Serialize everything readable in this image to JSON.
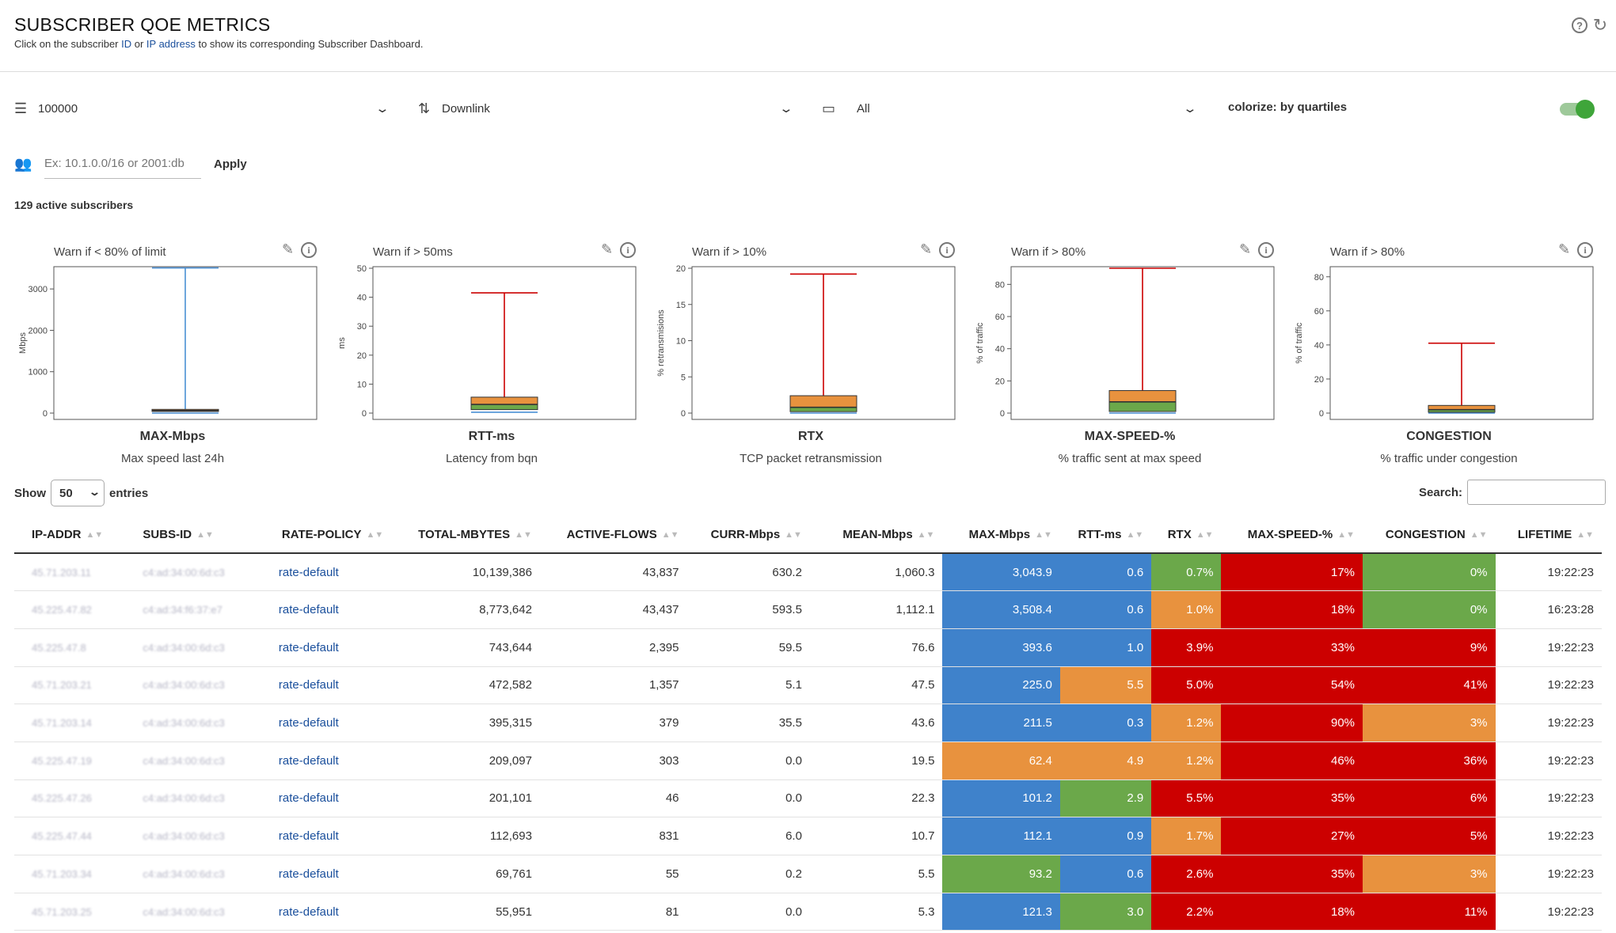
{
  "header": {
    "title": "SUBSCRIBER QOE METRICS",
    "subtitle_pre": "Click on the subscriber ",
    "subtitle_id": "ID",
    "subtitle_or": " or ",
    "subtitle_ip": "IP address",
    "subtitle_post": " to show its corresponding Subscriber Dashboard.",
    "help_glyph": "?",
    "refresh_glyph": "↻"
  },
  "filters": {
    "limit": "100000",
    "direction": "Downlink",
    "folder": "All",
    "colorize_label": "colorize: by quartiles",
    "colorize_on": true,
    "ip_placeholder": "Ex: 10.1.0.0/16 or 2001:db",
    "apply_label": "Apply"
  },
  "active_subscribers": "129 active subscribers",
  "panels": [
    {
      "warn": "Warn if < 80% of limit",
      "name": "MAX-Mbps",
      "desc": "Max speed last 24h",
      "ylabel": "Mbps"
    },
    {
      "warn": "Warn if > 50ms",
      "name": "RTT-ms",
      "desc": "Latency from bqn",
      "ylabel": "ms"
    },
    {
      "warn": "Warn if > 10%",
      "name": "RTX",
      "desc": "TCP packet retransmission",
      "ylabel": "% retransmisions"
    },
    {
      "warn": "Warn if > 80%",
      "name": "MAX-SPEED-%",
      "desc": "% traffic sent at max speed",
      "ylabel": "% of traffic"
    },
    {
      "warn": "Warn if > 80%",
      "name": "CONGESTION",
      "desc": "% traffic under congestion",
      "ylabel": "% of traffic"
    }
  ],
  "chart_data": [
    {
      "type": "box",
      "title": "MAX-Mbps",
      "ylabel": "Mbps",
      "ylim": [
        0,
        3500
      ],
      "yticks": [
        0,
        1000,
        2000,
        3000
      ],
      "min": 0,
      "q1": 40,
      "median": 60,
      "q3": 90,
      "max": 3508.4,
      "whisker_color": "#4a8fd4"
    },
    {
      "type": "box",
      "title": "RTT-ms",
      "ylabel": "ms",
      "ylim": [
        0,
        50
      ],
      "yticks": [
        0,
        10,
        20,
        30,
        40,
        50
      ],
      "min": 0.3,
      "q1": 1.2,
      "median": 3.0,
      "q3": 5.5,
      "max": 41.5,
      "whisker_color": "#cc0000"
    },
    {
      "type": "box",
      "title": "RTX",
      "ylabel": "% retransmisions",
      "ylim": [
        0,
        20
      ],
      "yticks": [
        0,
        5,
        10,
        15,
        20
      ],
      "min": 0,
      "q1": 0.2,
      "median": 0.8,
      "q3": 2.4,
      "max": 19.2,
      "whisker_color": "#cc0000"
    },
    {
      "type": "box",
      "title": "MAX-SPEED-%",
      "ylabel": "% of traffic",
      "ylim": [
        0,
        90
      ],
      "yticks": [
        0,
        20,
        40,
        60,
        80
      ],
      "min": 0,
      "q1": 1,
      "median": 7,
      "q3": 14,
      "max": 90,
      "whisker_color": "#cc0000"
    },
    {
      "type": "box",
      "title": "CONGESTION",
      "ylabel": "% of traffic",
      "ylim": [
        0,
        85
      ],
      "yticks": [
        0,
        20,
        40,
        60,
        80
      ],
      "min": 0,
      "q1": 0.5,
      "median": 2,
      "q3": 4.5,
      "max": 41,
      "whisker_color": "#cc0000"
    }
  ],
  "table_controls": {
    "show_label": "Show",
    "entries_value": "50",
    "entries_label": "entries",
    "search_label": "Search:"
  },
  "table": {
    "columns": [
      "IP-ADDR",
      "SUBS-ID",
      "RATE-POLICY",
      "TOTAL-MBYTES",
      "ACTIVE-FLOWS",
      "CURR-Mbps",
      "MEAN-Mbps",
      "MAX-Mbps",
      "RTT-ms",
      "RTX",
      "MAX-SPEED-%",
      "CONGESTION",
      "LIFETIME"
    ],
    "sort_glyph": "▲▼",
    "colors": {
      "blue": "#3f82cb",
      "green": "#6ba84a",
      "orange": "#e8923e",
      "red": "#cc0000"
    },
    "rows": [
      {
        "ip": "45.71.203.11",
        "subs": "c4:ad:34:00:6d:c3",
        "policy": "rate-default",
        "total": "10,139,386",
        "flows": "43,837",
        "curr": "630.2",
        "mean": "1,060.3",
        "max": "3,043.9",
        "max_c": "blue",
        "rtt": "0.6",
        "rtt_c": "blue",
        "rtx": "0.7%",
        "rtx_c": "green",
        "speed": "17%",
        "speed_c": "red",
        "cong": "0%",
        "cong_c": "green",
        "life": "19:22:23"
      },
      {
        "ip": "45.225.47.82",
        "subs": "c4:ad:34:f6:37:e7",
        "policy": "rate-default",
        "total": "8,773,642",
        "flows": "43,437",
        "curr": "593.5",
        "mean": "1,112.1",
        "max": "3,508.4",
        "max_c": "blue",
        "rtt": "0.6",
        "rtt_c": "blue",
        "rtx": "1.0%",
        "rtx_c": "orange",
        "speed": "18%",
        "speed_c": "red",
        "cong": "0%",
        "cong_c": "green",
        "life": "16:23:28"
      },
      {
        "ip": "45.225.47.8",
        "subs": "c4:ad:34:00:6d:c3",
        "policy": "rate-default",
        "total": "743,644",
        "flows": "2,395",
        "curr": "59.5",
        "mean": "76.6",
        "max": "393.6",
        "max_c": "blue",
        "rtt": "1.0",
        "rtt_c": "blue",
        "rtx": "3.9%",
        "rtx_c": "red",
        "speed": "33%",
        "speed_c": "red",
        "cong": "9%",
        "cong_c": "red",
        "life": "19:22:23"
      },
      {
        "ip": "45.71.203.21",
        "subs": "c4:ad:34:00:6d:c3",
        "policy": "rate-default",
        "total": "472,582",
        "flows": "1,357",
        "curr": "5.1",
        "mean": "47.5",
        "max": "225.0",
        "max_c": "blue",
        "rtt": "5.5",
        "rtt_c": "orange",
        "rtx": "5.0%",
        "rtx_c": "red",
        "speed": "54%",
        "speed_c": "red",
        "cong": "41%",
        "cong_c": "red",
        "life": "19:22:23"
      },
      {
        "ip": "45.71.203.14",
        "subs": "c4:ad:34:00:6d:c3",
        "policy": "rate-default",
        "total": "395,315",
        "flows": "379",
        "curr": "35.5",
        "mean": "43.6",
        "max": "211.5",
        "max_c": "blue",
        "rtt": "0.3",
        "rtt_c": "blue",
        "rtx": "1.2%",
        "rtx_c": "orange",
        "speed": "90%",
        "speed_c": "red",
        "cong": "3%",
        "cong_c": "orange",
        "life": "19:22:23"
      },
      {
        "ip": "45.225.47.19",
        "subs": "c4:ad:34:00:6d:c3",
        "policy": "rate-default",
        "total": "209,097",
        "flows": "303",
        "curr": "0.0",
        "mean": "19.5",
        "max": "62.4",
        "max_c": "orange",
        "rtt": "4.9",
        "rtt_c": "orange",
        "rtx": "1.2%",
        "rtx_c": "orange",
        "speed": "46%",
        "speed_c": "red",
        "cong": "36%",
        "cong_c": "red",
        "life": "19:22:23"
      },
      {
        "ip": "45.225.47.26",
        "subs": "c4:ad:34:00:6d:c3",
        "policy": "rate-default",
        "total": "201,101",
        "flows": "46",
        "curr": "0.0",
        "mean": "22.3",
        "max": "101.2",
        "max_c": "blue",
        "rtt": "2.9",
        "rtt_c": "green",
        "rtx": "5.5%",
        "rtx_c": "red",
        "speed": "35%",
        "speed_c": "red",
        "cong": "6%",
        "cong_c": "red",
        "life": "19:22:23"
      },
      {
        "ip": "45.225.47.44",
        "subs": "c4:ad:34:00:6d:c3",
        "policy": "rate-default",
        "total": "112,693",
        "flows": "831",
        "curr": "6.0",
        "mean": "10.7",
        "max": "112.1",
        "max_c": "blue",
        "rtt": "0.9",
        "rtt_c": "blue",
        "rtx": "1.7%",
        "rtx_c": "orange",
        "speed": "27%",
        "speed_c": "red",
        "cong": "5%",
        "cong_c": "red",
        "life": "19:22:23"
      },
      {
        "ip": "45.71.203.34",
        "subs": "c4:ad:34:00:6d:c3",
        "policy": "rate-default",
        "total": "69,761",
        "flows": "55",
        "curr": "0.2",
        "mean": "5.5",
        "max": "93.2",
        "max_c": "green",
        "rtt": "0.6",
        "rtt_c": "blue",
        "rtx": "2.6%",
        "rtx_c": "red",
        "speed": "35%",
        "speed_c": "red",
        "cong": "3%",
        "cong_c": "orange",
        "life": "19:22:23"
      },
      {
        "ip": "45.71.203.25",
        "subs": "c4:ad:34:00:6d:c3",
        "policy": "rate-default",
        "total": "55,951",
        "flows": "81",
        "curr": "0.0",
        "mean": "5.3",
        "max": "121.3",
        "max_c": "blue",
        "rtt": "3.0",
        "rtt_c": "green",
        "rtx": "2.2%",
        "rtx_c": "red",
        "speed": "18%",
        "speed_c": "red",
        "cong": "11%",
        "cong_c": "red",
        "life": "19:22:23"
      }
    ]
  },
  "icons": {
    "limit": "list-ordered-icon",
    "direction": "swap-vertical-icon",
    "folder": "folder-icon",
    "subscribers": "people-icon",
    "edit": "pencil-icon",
    "info": "info-icon"
  }
}
